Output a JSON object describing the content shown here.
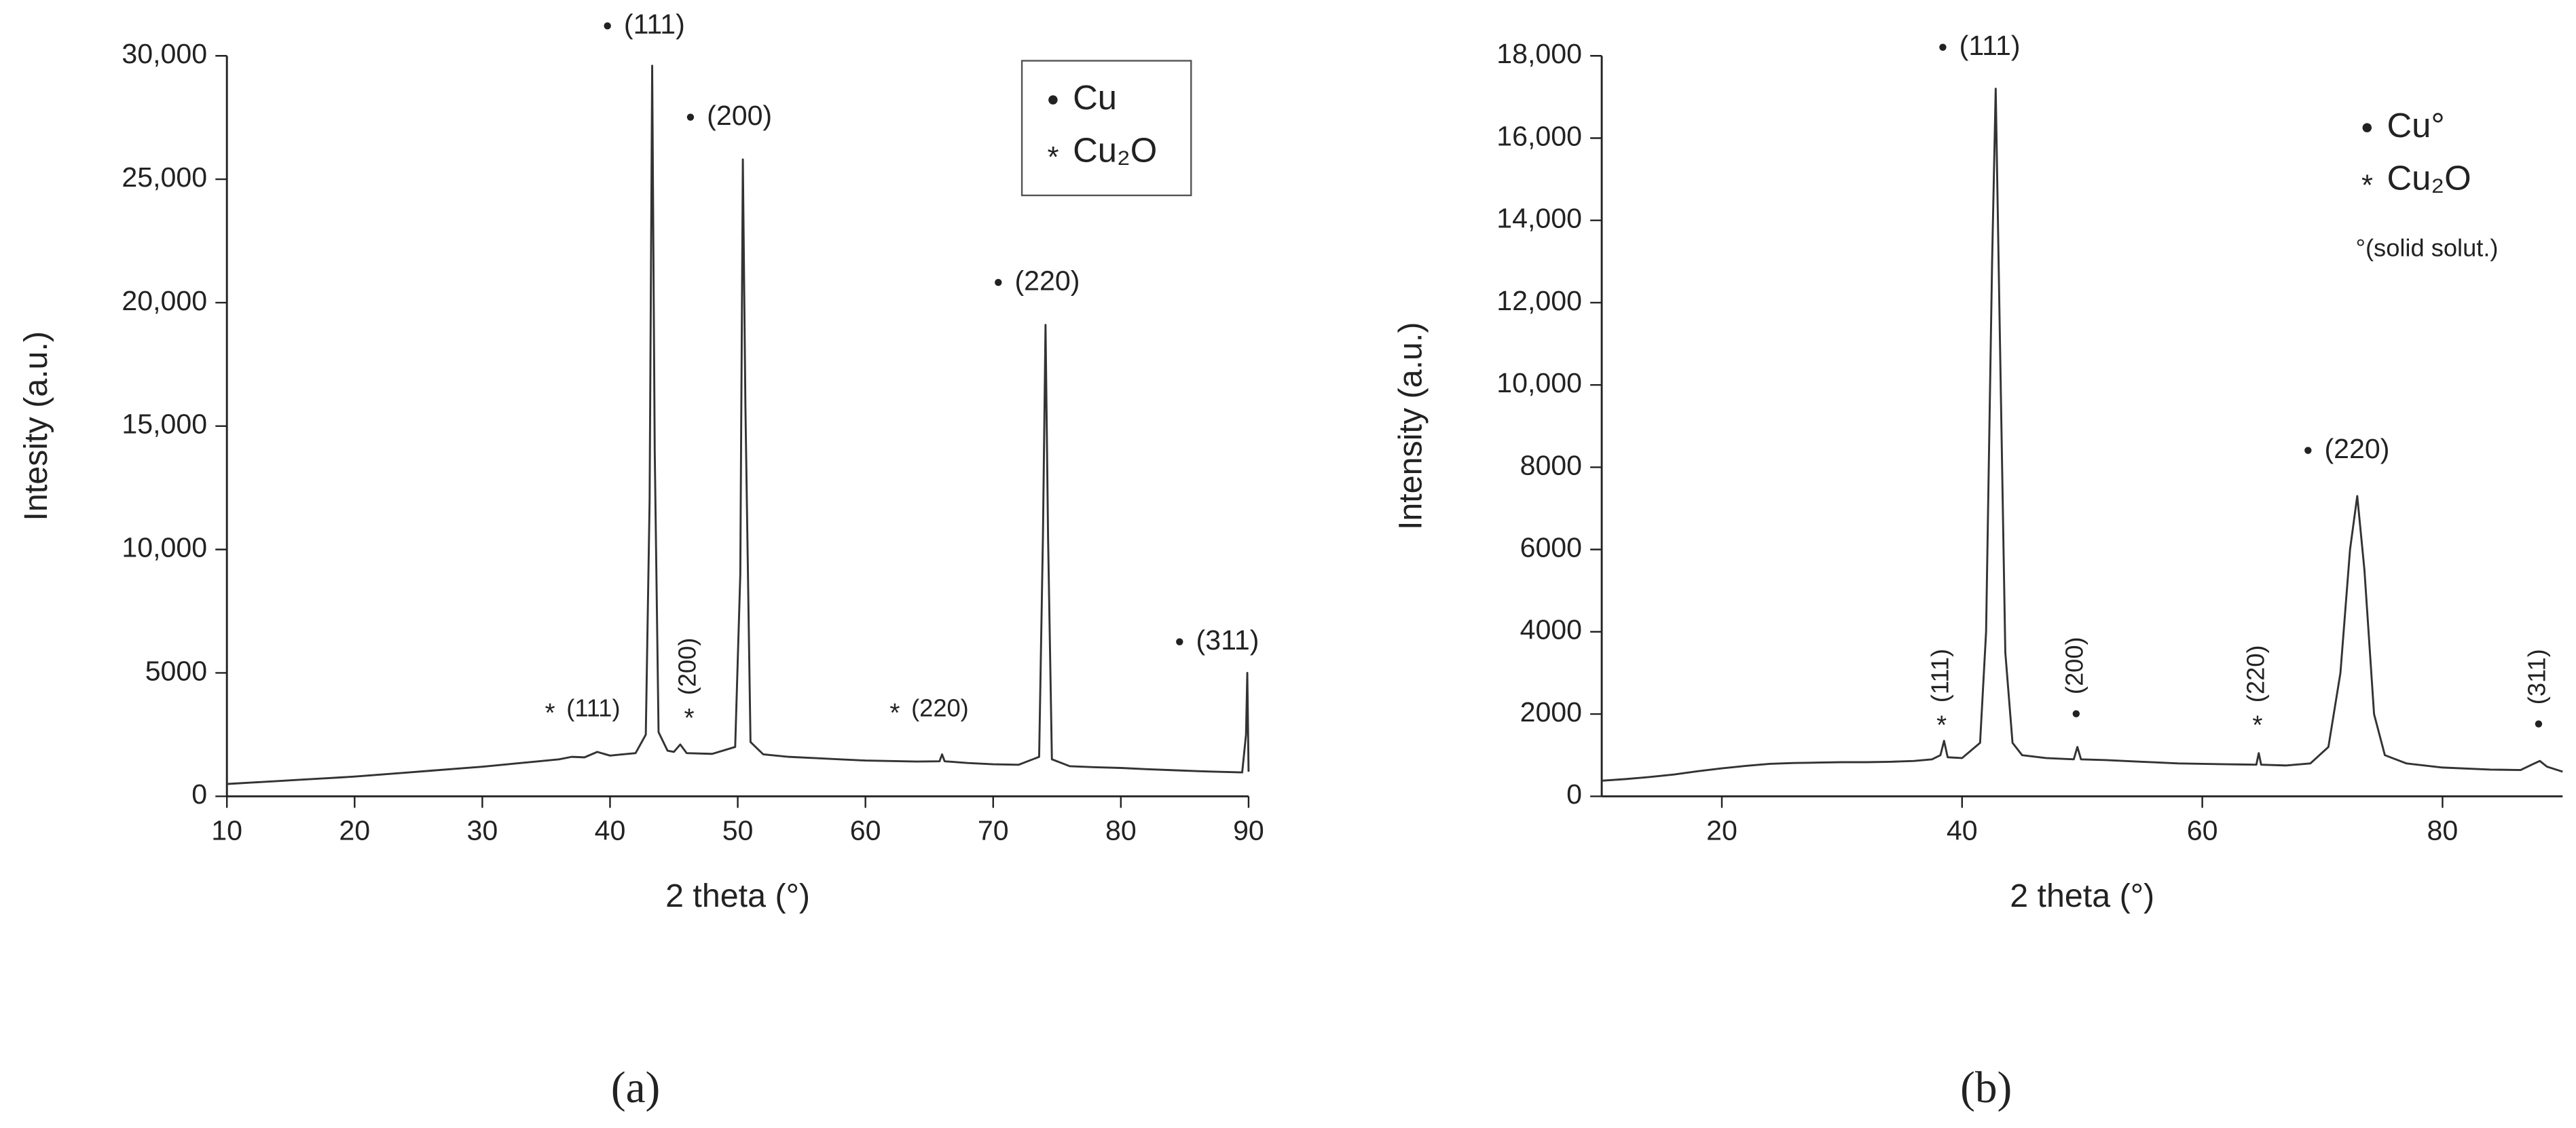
{
  "chart_data": [
    {
      "type": "line",
      "xlabel": "2 theta (°)",
      "ylabel": "Intesity (a.u.)",
      "caption": "(a)",
      "xlim": [
        10,
        90
      ],
      "ylim": [
        0,
        30000
      ],
      "xticks": [
        10,
        20,
        30,
        40,
        50,
        60,
        70,
        80,
        90
      ],
      "yticks": [
        0,
        5000,
        {
          "value": 10000,
          "label": "10,000"
        },
        {
          "value": 15000,
          "label": "15,000"
        },
        {
          "value": 20000,
          "label": "20,000"
        },
        {
          "value": 25000,
          "label": "25,000"
        },
        {
          "value": 30000,
          "label": "30,000"
        }
      ],
      "x": [
        10,
        12,
        14,
        16,
        18,
        20,
        22,
        24,
        26,
        28,
        30,
        32,
        34,
        36,
        37,
        38,
        39,
        40,
        41,
        42,
        42.8,
        43.1,
        43.3,
        43.5,
        43.8,
        44.5,
        45,
        45.5,
        46,
        48,
        49.8,
        50.2,
        50.4,
        50.6,
        51,
        52,
        54,
        56,
        58,
        60,
        62,
        64,
        65.8,
        66,
        66.2,
        68,
        70,
        72,
        73.6,
        73.9,
        74.1,
        74.3,
        74.6,
        76,
        78,
        80,
        82,
        84,
        86,
        88,
        89.5,
        89.8,
        89.9,
        90
      ],
      "series": [
        {
          "color": "#333333",
          "values": [
            500,
            560,
            620,
            680,
            740,
            800,
            880,
            960,
            1040,
            1120,
            1200,
            1300,
            1400,
            1500,
            1600,
            1580,
            1800,
            1650,
            1700,
            1750,
            2500,
            12000,
            29600,
            14000,
            2600,
            1850,
            1800,
            2100,
            1750,
            1720,
            2000,
            9000,
            25800,
            15800,
            2200,
            1700,
            1600,
            1550,
            1500,
            1450,
            1430,
            1410,
            1420,
            1700,
            1420,
            1350,
            1300,
            1280,
            1600,
            10600,
            19100,
            10500,
            1500,
            1220,
            1180,
            1150,
            1100,
            1060,
            1020,
            990,
            970,
            2500,
            5000,
            1000
          ]
        }
      ],
      "annotations": [
        {
          "marker": "●",
          "label": "(111)",
          "x": 39.8,
          "y": 31200,
          "vertical": false
        },
        {
          "marker": "●",
          "label": "(200)",
          "x": 46.3,
          "y": 27500,
          "vertical": false
        },
        {
          "marker": "●",
          "label": "(220)",
          "x": 70.4,
          "y": 20800,
          "vertical": false
        },
        {
          "marker": "●",
          "label": "(311)",
          "x": 84.6,
          "y": 6250,
          "vertical": false
        },
        {
          "marker": "*",
          "label": "(111)",
          "x": 35.3,
          "y": 3500,
          "vertical": false
        },
        {
          "marker": "*",
          "label": "(200)",
          "x": 46.2,
          "y": 3300,
          "vertical": true
        },
        {
          "marker": "*",
          "label": "(220)",
          "x": 62.3,
          "y": 3500,
          "vertical": false
        }
      ],
      "legend": [
        {
          "marker": "●",
          "label": "Cu"
        },
        {
          "marker": "*",
          "label": "Cu₂O"
        }
      ],
      "legend_position": "upper right",
      "legend_frame": true
    },
    {
      "type": "line",
      "xlabel": "2 theta (°)",
      "ylabel": "Intensity (a.u.)",
      "caption": "(b)",
      "xlim": [
        10,
        90
      ],
      "ylim": [
        0,
        18000
      ],
      "xticks": [
        20,
        40,
        60,
        80
      ],
      "yticks": [
        0,
        2000,
        4000,
        6000,
        8000,
        {
          "value": 10000,
          "label": "10,000"
        },
        {
          "value": 12000,
          "label": "12,000"
        },
        {
          "value": 14000,
          "label": "14,000"
        },
        {
          "value": 16000,
          "label": "16,000"
        },
        {
          "value": 18000,
          "label": "18,000"
        }
      ],
      "x": [
        10,
        12,
        14,
        16,
        18,
        20,
        22,
        24,
        26,
        28,
        30,
        32,
        34,
        36,
        37.5,
        38.2,
        38.5,
        38.8,
        40,
        41.5,
        42,
        42.5,
        42.8,
        43.1,
        43.6,
        44.2,
        45,
        47,
        49.3,
        49.6,
        49.9,
        52,
        55,
        58,
        62,
        64.5,
        64.7,
        64.9,
        67,
        69,
        70.5,
        71.5,
        72.3,
        72.9,
        73.5,
        74.3,
        75.2,
        77,
        80,
        84,
        86.5,
        87.5,
        88.1,
        88.7,
        90
      ],
      "series": [
        {
          "color": "#333333",
          "values": [
            380,
            420,
            470,
            530,
            610,
            680,
            740,
            790,
            810,
            820,
            830,
            830,
            840,
            860,
            900,
            1000,
            1350,
            950,
            930,
            1300,
            4000,
            13000,
            17200,
            12000,
            3500,
            1300,
            1000,
            930,
            900,
            1200,
            900,
            880,
            840,
            800,
            780,
            770,
            1050,
            770,
            750,
            800,
            1200,
            3000,
            6000,
            7300,
            5500,
            2000,
            1000,
            800,
            700,
            650,
            640,
            780,
            860,
            720,
            600
          ]
        }
      ],
      "annotations": [
        {
          "marker": "●",
          "label": "(111)",
          "x": 38.4,
          "y": 18200,
          "vertical": false
        },
        {
          "marker": "●",
          "label": "(220)",
          "x": 68.8,
          "y": 8400,
          "vertical": false
        },
        {
          "marker": "*",
          "label": "(111)",
          "x": 38.3,
          "y": 1800,
          "vertical": true
        },
        {
          "marker": "●",
          "label": "(200)",
          "x": 49.5,
          "y": 2000,
          "vertical": true
        },
        {
          "marker": "*",
          "label": "(220)",
          "x": 64.6,
          "y": 1800,
          "vertical": true
        },
        {
          "marker": "●",
          "label": "(311)",
          "x": 88.0,
          "y": 1750,
          "vertical": true
        }
      ],
      "legend": [
        {
          "marker": "●",
          "label": "Cu°"
        },
        {
          "marker": "*",
          "label": "Cu₂O"
        }
      ],
      "legend_note": "°(solid solut.)",
      "legend_position": "upper right",
      "legend_frame": false
    }
  ]
}
